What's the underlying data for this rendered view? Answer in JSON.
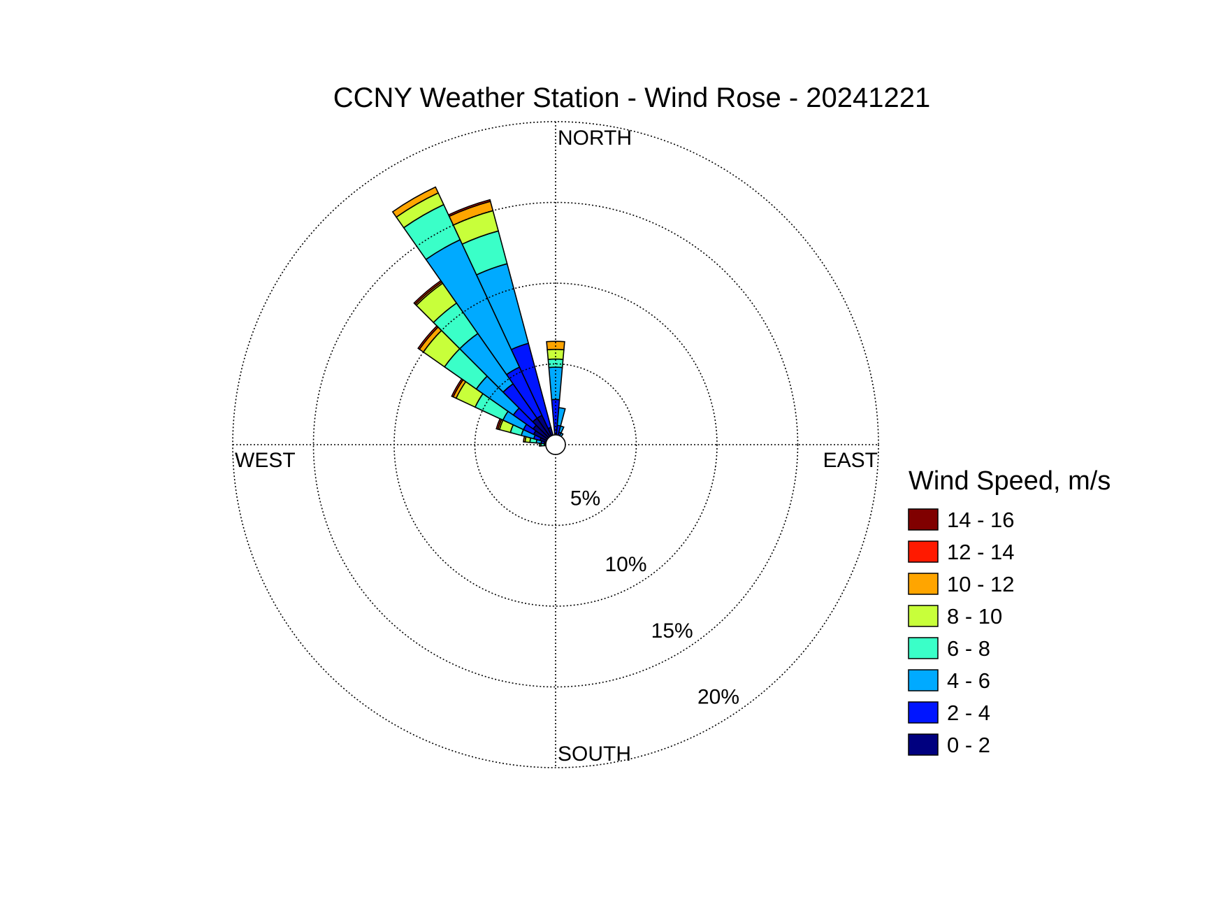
{
  "chart_data": {
    "type": "wind-rose",
    "title": "CCNY Weather Station - Wind Rose - 20241221",
    "cardinals": {
      "north": "NORTH",
      "south": "SOUTH",
      "east": "EAST",
      "west": "WEST"
    },
    "rings": [
      5,
      10,
      15,
      20
    ],
    "ring_labels": [
      "5%",
      "10%",
      "15%",
      "20%"
    ],
    "max_percent": 20,
    "legend": {
      "title": "Wind Speed, m/s",
      "bins": [
        {
          "label": "14 - 16",
          "color": "#800000"
        },
        {
          "label": "12 - 14",
          "color": "#ff1a00"
        },
        {
          "label": "10 - 12",
          "color": "#ffa500"
        },
        {
          "label": "8 - 10",
          "color": "#c8ff3a"
        },
        {
          "label": "6 - 8",
          "color": "#3affc8"
        },
        {
          "label": "4 - 6",
          "color": "#00aaff"
        },
        {
          "label": "2 - 4",
          "color": "#0015ff"
        },
        {
          "label": "0 - 2",
          "color": "#00007f"
        }
      ]
    },
    "sector_width_deg": 10,
    "sectors": [
      {
        "direction": 0,
        "cumulative": [
          0.4,
          2.8,
          4.8,
          5.3,
          5.9,
          6.4,
          6.4,
          6.4
        ]
      },
      {
        "direction": 10,
        "cumulative": [
          0.3,
          1.2,
          2.3,
          2.3,
          2.3,
          2.3,
          2.3,
          2.3
        ]
      },
      {
        "direction": 20,
        "cumulative": [
          0.3,
          0.8,
          1.2,
          1.2,
          1.2,
          1.2,
          1.2,
          1.2
        ]
      },
      {
        "direction": 30,
        "cumulative": [
          0.3,
          0.6,
          0.8,
          0.8,
          0.8,
          0.8,
          0.8,
          0.8
        ]
      },
      {
        "direction": 40,
        "cumulative": [
          0.3,
          0.5,
          0.6,
          0.6,
          0.6,
          0.6,
          0.6,
          0.6
        ]
      },
      {
        "direction": 340,
        "cumulative": [
          1.1,
          6.5,
          11.6,
          13.7,
          15.0,
          15.6,
          15.7,
          15.7
        ]
      },
      {
        "direction": 330,
        "cumulative": [
          2.0,
          5.3,
          14.0,
          16.4,
          17.2,
          17.6,
          17.6,
          17.6
        ]
      },
      {
        "direction": 320,
        "cumulative": [
          2.0,
          4.6,
          8.4,
          10.7,
          12.2,
          12.3,
          12.4,
          12.4
        ]
      },
      {
        "direction": 310,
        "cumulative": [
          1.7,
          3.2,
          6.0,
          8.4,
          10.0,
          10.3,
          10.4,
          10.4
        ]
      },
      {
        "direction": 300,
        "cumulative": [
          1.5,
          2.2,
          3.6,
          5.5,
          6.8,
          7.0,
          7.1,
          7.1
        ]
      },
      {
        "direction": 290,
        "cumulative": [
          1.0,
          1.4,
          2.2,
          2.9,
          3.6,
          3.7,
          3.8,
          3.8
        ]
      },
      {
        "direction": 280,
        "cumulative": [
          0.7,
          0.9,
          1.2,
          1.6,
          1.9,
          2.0,
          2.0,
          2.0
        ]
      },
      {
        "direction": 270,
        "cumulative": [
          0.5,
          0.6,
          0.7,
          0.9,
          1.0,
          1.0,
          1.0,
          1.0
        ]
      },
      {
        "direction": 260,
        "cumulative": [
          0.4,
          0.5,
          0.6,
          0.6,
          0.6,
          0.6,
          0.6,
          0.6
        ]
      },
      {
        "direction": 160,
        "cumulative": [
          0.4,
          0.5,
          0.6,
          0.6,
          0.6,
          0.6,
          0.6,
          0.6
        ]
      },
      {
        "direction": 130,
        "cumulative": [
          0.4,
          0.5,
          0.5,
          0.5,
          0.5,
          0.5,
          0.5,
          0.5
        ]
      }
    ]
  }
}
